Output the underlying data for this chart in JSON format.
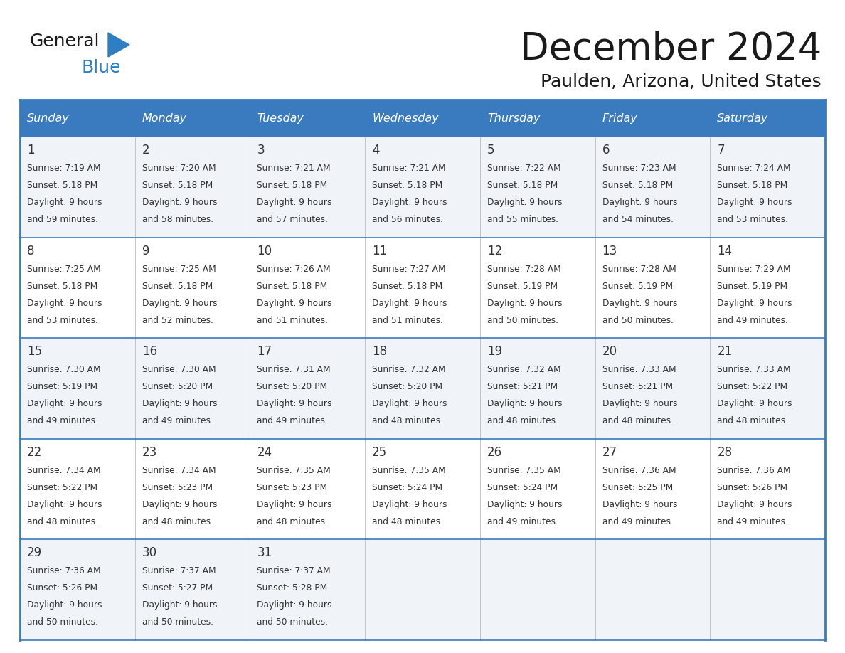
{
  "title": "December 2024",
  "subtitle": "Paulden, Arizona, United States",
  "days_of_week": [
    "Sunday",
    "Monday",
    "Tuesday",
    "Wednesday",
    "Thursday",
    "Friday",
    "Saturday"
  ],
  "header_bg": "#3a7abf",
  "header_text": "#ffffff",
  "cell_bg_odd": "#f0f4f8",
  "cell_bg_even": "#ffffff",
  "border_color": "#3a7abf",
  "row_sep_color": "#3a7abf",
  "text_color": "#333333",
  "day_num_color": "#333333",
  "logo_general_color": "#1a1a1a",
  "logo_blue_color": "#2e7fc1",
  "logo_triangle_color": "#2e7fc1",
  "calendar_data": [
    [
      {
        "day": 1,
        "sunrise": "7:19 AM",
        "sunset": "5:18 PM",
        "daylight": "9 hours",
        "daylight2": "and 59 minutes."
      },
      {
        "day": 2,
        "sunrise": "7:20 AM",
        "sunset": "5:18 PM",
        "daylight": "9 hours",
        "daylight2": "and 58 minutes."
      },
      {
        "day": 3,
        "sunrise": "7:21 AM",
        "sunset": "5:18 PM",
        "daylight": "9 hours",
        "daylight2": "and 57 minutes."
      },
      {
        "day": 4,
        "sunrise": "7:21 AM",
        "sunset": "5:18 PM",
        "daylight": "9 hours",
        "daylight2": "and 56 minutes."
      },
      {
        "day": 5,
        "sunrise": "7:22 AM",
        "sunset": "5:18 PM",
        "daylight": "9 hours",
        "daylight2": "and 55 minutes."
      },
      {
        "day": 6,
        "sunrise": "7:23 AM",
        "sunset": "5:18 PM",
        "daylight": "9 hours",
        "daylight2": "and 54 minutes."
      },
      {
        "day": 7,
        "sunrise": "7:24 AM",
        "sunset": "5:18 PM",
        "daylight": "9 hours",
        "daylight2": "and 53 minutes."
      }
    ],
    [
      {
        "day": 8,
        "sunrise": "7:25 AM",
        "sunset": "5:18 PM",
        "daylight": "9 hours",
        "daylight2": "and 53 minutes."
      },
      {
        "day": 9,
        "sunrise": "7:25 AM",
        "sunset": "5:18 PM",
        "daylight": "9 hours",
        "daylight2": "and 52 minutes."
      },
      {
        "day": 10,
        "sunrise": "7:26 AM",
        "sunset": "5:18 PM",
        "daylight": "9 hours",
        "daylight2": "and 51 minutes."
      },
      {
        "day": 11,
        "sunrise": "7:27 AM",
        "sunset": "5:18 PM",
        "daylight": "9 hours",
        "daylight2": "and 51 minutes."
      },
      {
        "day": 12,
        "sunrise": "7:28 AM",
        "sunset": "5:19 PM",
        "daylight": "9 hours",
        "daylight2": "and 50 minutes."
      },
      {
        "day": 13,
        "sunrise": "7:28 AM",
        "sunset": "5:19 PM",
        "daylight": "9 hours",
        "daylight2": "and 50 minutes."
      },
      {
        "day": 14,
        "sunrise": "7:29 AM",
        "sunset": "5:19 PM",
        "daylight": "9 hours",
        "daylight2": "and 49 minutes."
      }
    ],
    [
      {
        "day": 15,
        "sunrise": "7:30 AM",
        "sunset": "5:19 PM",
        "daylight": "9 hours",
        "daylight2": "and 49 minutes."
      },
      {
        "day": 16,
        "sunrise": "7:30 AM",
        "sunset": "5:20 PM",
        "daylight": "9 hours",
        "daylight2": "and 49 minutes."
      },
      {
        "day": 17,
        "sunrise": "7:31 AM",
        "sunset": "5:20 PM",
        "daylight": "9 hours",
        "daylight2": "and 49 minutes."
      },
      {
        "day": 18,
        "sunrise": "7:32 AM",
        "sunset": "5:20 PM",
        "daylight": "9 hours",
        "daylight2": "and 48 minutes."
      },
      {
        "day": 19,
        "sunrise": "7:32 AM",
        "sunset": "5:21 PM",
        "daylight": "9 hours",
        "daylight2": "and 48 minutes."
      },
      {
        "day": 20,
        "sunrise": "7:33 AM",
        "sunset": "5:21 PM",
        "daylight": "9 hours",
        "daylight2": "and 48 minutes."
      },
      {
        "day": 21,
        "sunrise": "7:33 AM",
        "sunset": "5:22 PM",
        "daylight": "9 hours",
        "daylight2": "and 48 minutes."
      }
    ],
    [
      {
        "day": 22,
        "sunrise": "7:34 AM",
        "sunset": "5:22 PM",
        "daylight": "9 hours",
        "daylight2": "and 48 minutes."
      },
      {
        "day": 23,
        "sunrise": "7:34 AM",
        "sunset": "5:23 PM",
        "daylight": "9 hours",
        "daylight2": "and 48 minutes."
      },
      {
        "day": 24,
        "sunrise": "7:35 AM",
        "sunset": "5:23 PM",
        "daylight": "9 hours",
        "daylight2": "and 48 minutes."
      },
      {
        "day": 25,
        "sunrise": "7:35 AM",
        "sunset": "5:24 PM",
        "daylight": "9 hours",
        "daylight2": "and 48 minutes."
      },
      {
        "day": 26,
        "sunrise": "7:35 AM",
        "sunset": "5:24 PM",
        "daylight": "9 hours",
        "daylight2": "and 49 minutes."
      },
      {
        "day": 27,
        "sunrise": "7:36 AM",
        "sunset": "5:25 PM",
        "daylight": "9 hours",
        "daylight2": "and 49 minutes."
      },
      {
        "day": 28,
        "sunrise": "7:36 AM",
        "sunset": "5:26 PM",
        "daylight": "9 hours",
        "daylight2": "and 49 minutes."
      }
    ],
    [
      {
        "day": 29,
        "sunrise": "7:36 AM",
        "sunset": "5:26 PM",
        "daylight": "9 hours",
        "daylight2": "and 50 minutes."
      },
      {
        "day": 30,
        "sunrise": "7:37 AM",
        "sunset": "5:27 PM",
        "daylight": "9 hours",
        "daylight2": "and 50 minutes."
      },
      {
        "day": 31,
        "sunrise": "7:37 AM",
        "sunset": "5:28 PM",
        "daylight": "9 hours",
        "daylight2": "and 50 minutes."
      },
      null,
      null,
      null,
      null
    ]
  ]
}
